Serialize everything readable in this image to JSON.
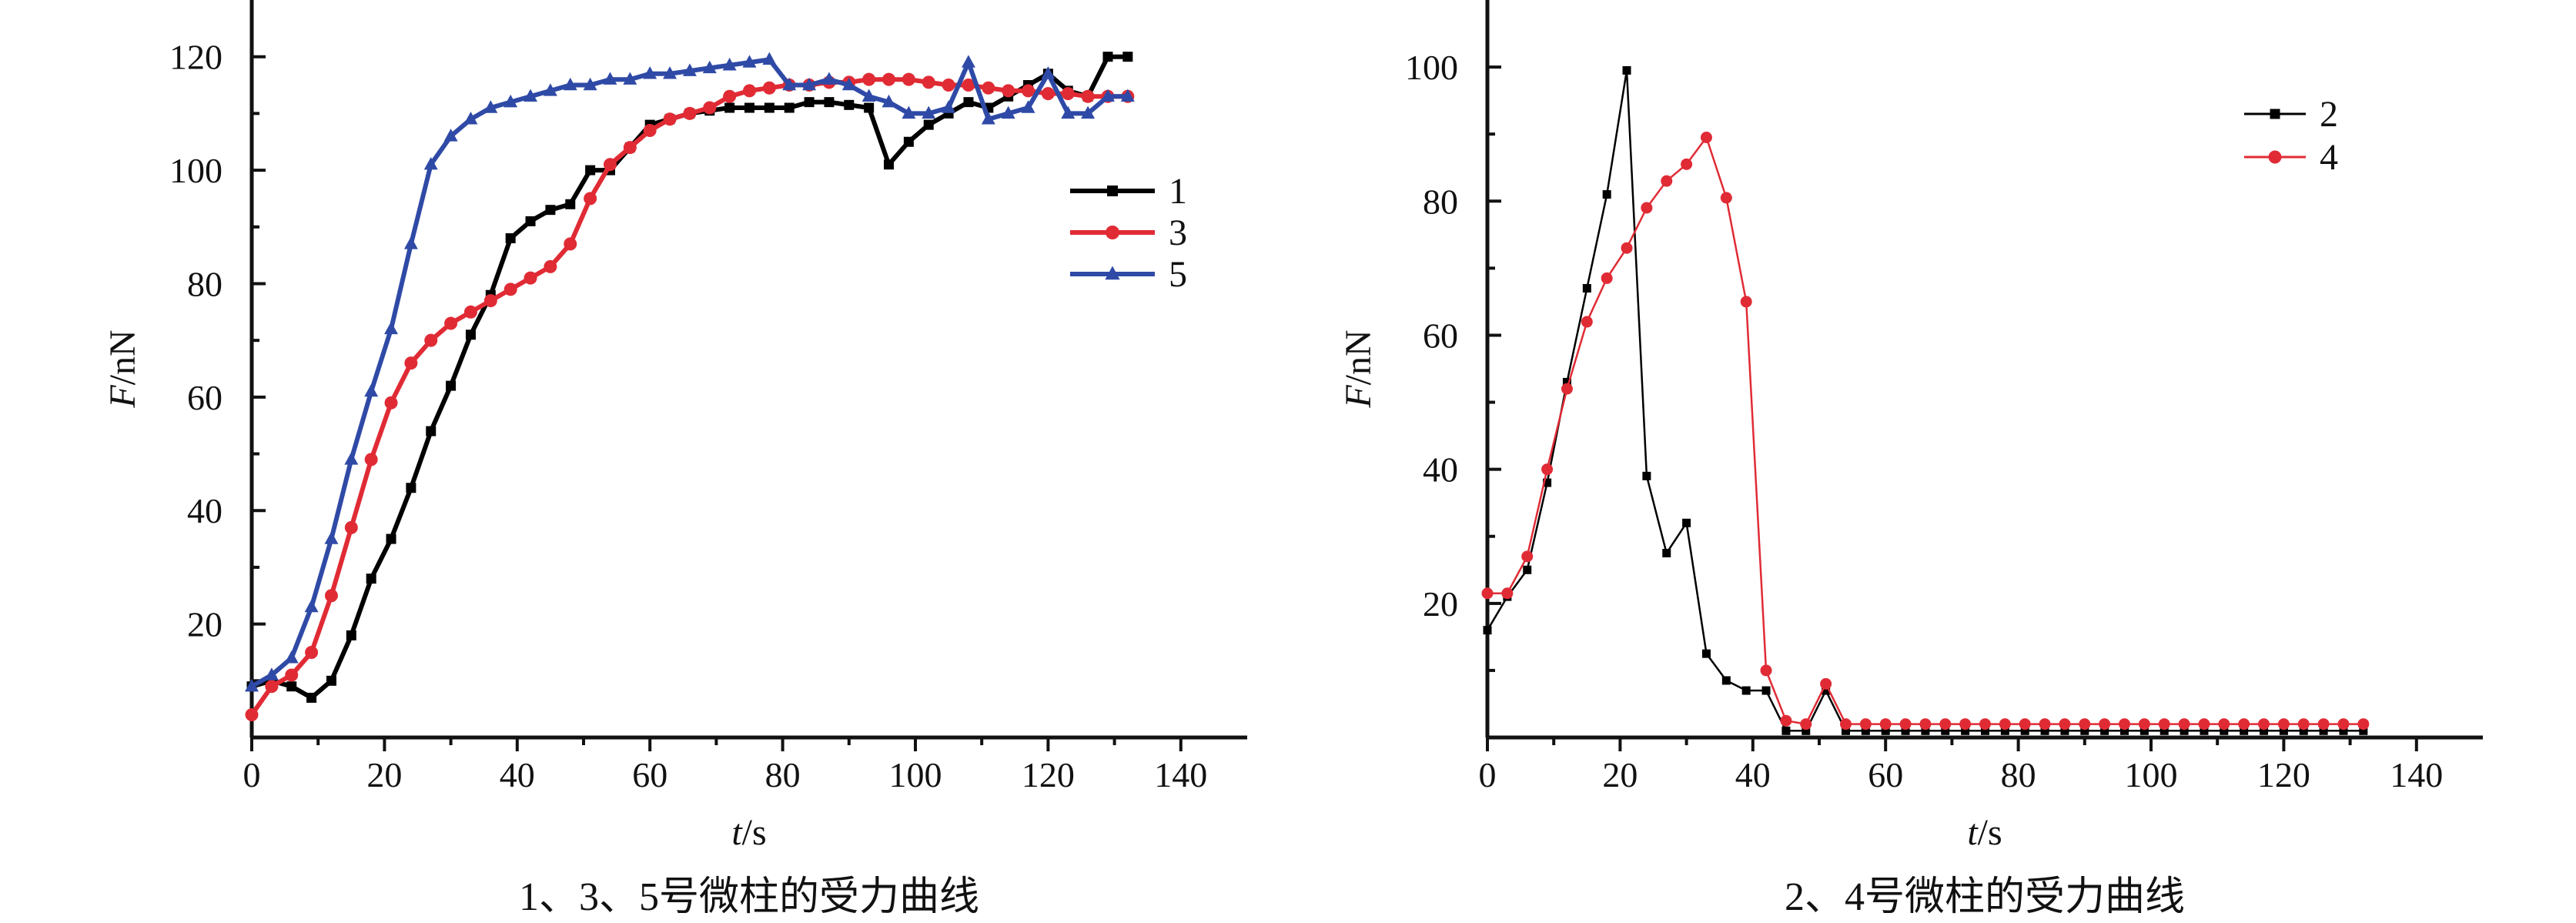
{
  "chart_data": [
    {
      "type": "line",
      "caption": "1、3、5号微柱的受力曲线",
      "xlabel": "t/s",
      "ylabel": "F/nN",
      "xlim": [
        0,
        150
      ],
      "ylim": [
        0,
        130
      ],
      "xticks": [
        "0",
        "20",
        "40",
        "60",
        "80",
        "100",
        "120",
        "140"
      ],
      "yticks": [
        "20",
        "40",
        "60",
        "80",
        "100",
        "120"
      ],
      "legend_position": "upper-right",
      "series": [
        {
          "name": "1",
          "color": "#000000",
          "marker": "square",
          "x": [
            0,
            3,
            6,
            9,
            12,
            15,
            18,
            21,
            24,
            27,
            30,
            33,
            36,
            39,
            42,
            45,
            48,
            51,
            54,
            57,
            60,
            63,
            66,
            69,
            72,
            75,
            78,
            81,
            84,
            87,
            90,
            93,
            96,
            99,
            102,
            105,
            108,
            111,
            114,
            117,
            120,
            123,
            126,
            129,
            132
          ],
          "y": [
            9,
            10,
            9,
            7,
            10,
            18,
            28,
            35,
            44,
            54,
            62,
            71,
            78,
            88,
            91,
            93,
            94,
            100,
            100,
            104,
            108,
            109,
            110,
            110.5,
            111,
            111,
            111,
            111,
            112,
            112,
            111.5,
            111,
            101,
            105,
            108,
            110,
            112,
            111,
            113,
            115,
            117,
            114,
            113,
            120,
            120
          ]
        },
        {
          "name": "3",
          "color": "#e02b35",
          "marker": "circle",
          "x": [
            0,
            3,
            6,
            9,
            12,
            15,
            18,
            21,
            24,
            27,
            30,
            33,
            36,
            39,
            42,
            45,
            48,
            51,
            54,
            57,
            60,
            63,
            66,
            69,
            72,
            75,
            78,
            81,
            84,
            87,
            90,
            93,
            96,
            99,
            102,
            105,
            108,
            111,
            114,
            117,
            120,
            123,
            126,
            129,
            132
          ],
          "y": [
            4,
            9,
            11,
            15,
            25,
            37,
            49,
            59,
            66,
            70,
            73,
            75,
            77,
            79,
            81,
            83,
            87,
            95,
            101,
            104,
            107,
            109,
            110,
            111,
            113,
            114,
            114.5,
            115,
            115,
            115.5,
            115.5,
            116,
            116,
            116,
            115.5,
            115,
            115,
            114.5,
            114,
            114,
            113.5,
            113.5,
            113,
            113,
            113
          ]
        },
        {
          "name": "5",
          "color": "#2f4aa6",
          "marker": "triangle",
          "x": [
            0,
            3,
            6,
            9,
            12,
            15,
            18,
            21,
            24,
            27,
            30,
            33,
            36,
            39,
            42,
            45,
            48,
            51,
            54,
            57,
            60,
            63,
            66,
            69,
            72,
            75,
            78,
            81,
            84,
            87,
            90,
            93,
            96,
            99,
            102,
            105,
            108,
            111,
            114,
            117,
            120,
            123,
            126,
            129,
            132
          ],
          "y": [
            9,
            11,
            14,
            23,
            35,
            49,
            61,
            72,
            87,
            101,
            106,
            109,
            111,
            112,
            113,
            114,
            115,
            115,
            116,
            116,
            117,
            117,
            117.5,
            118,
            118.5,
            119,
            119.5,
            115,
            115,
            116,
            115,
            113,
            112,
            110,
            110,
            111,
            119,
            109,
            110,
            111,
            117,
            110,
            110,
            113,
            113
          ]
        }
      ]
    },
    {
      "type": "line",
      "caption": "2、4号微柱的受力曲线",
      "xlabel": "t/s",
      "ylabel": "F/nN",
      "xlim": [
        0,
        150
      ],
      "ylim": [
        0,
        110
      ],
      "xticks": [
        "0",
        "20",
        "40",
        "60",
        "80",
        "100",
        "120",
        "140"
      ],
      "yticks": [
        "20",
        "40",
        "60",
        "80",
        "100"
      ],
      "legend_position": "upper-right",
      "series": [
        {
          "name": "2",
          "color": "#000000",
          "marker": "square",
          "x": [
            0,
            3,
            6,
            9,
            12,
            15,
            18,
            21,
            24,
            27,
            30,
            33,
            36,
            39,
            42,
            45,
            48,
            51,
            54,
            57,
            60,
            63,
            66,
            69,
            72,
            75,
            78,
            81,
            84,
            87,
            90,
            93,
            96,
            99,
            102,
            105,
            108,
            111,
            114,
            117,
            120,
            123,
            126,
            129,
            132
          ],
          "y": [
            16,
            21,
            25,
            38,
            53,
            67,
            81,
            99.5,
            39,
            27.5,
            32,
            12.5,
            8.5,
            7,
            7,
            1,
            1,
            7,
            1,
            1,
            1,
            1,
            1,
            1,
            1,
            1,
            1,
            1,
            1,
            1,
            1,
            1,
            1,
            1,
            1,
            1,
            1,
            1,
            1,
            1,
            1,
            1,
            1,
            1,
            1
          ]
        },
        {
          "name": "4",
          "color": "#e02b35",
          "marker": "circle",
          "x": [
            0,
            3,
            6,
            9,
            12,
            15,
            18,
            21,
            24,
            27,
            30,
            33,
            36,
            39,
            42,
            45,
            48,
            51,
            54,
            57,
            60,
            63,
            66,
            69,
            72,
            75,
            78,
            81,
            84,
            87,
            90,
            93,
            96,
            99,
            102,
            105,
            108,
            111,
            114,
            117,
            120,
            123,
            126,
            129,
            132
          ],
          "y": [
            21.5,
            21.5,
            27,
            40,
            52,
            62,
            68.5,
            73,
            79,
            83,
            85.5,
            89.5,
            80.5,
            65,
            10,
            2.5,
            2,
            8,
            2,
            2,
            2,
            2,
            2,
            2,
            2,
            2,
            2,
            2,
            2,
            2,
            2,
            2,
            2,
            2,
            2,
            2,
            2,
            2,
            2,
            2,
            2,
            2,
            2,
            2,
            2
          ]
        }
      ]
    }
  ]
}
